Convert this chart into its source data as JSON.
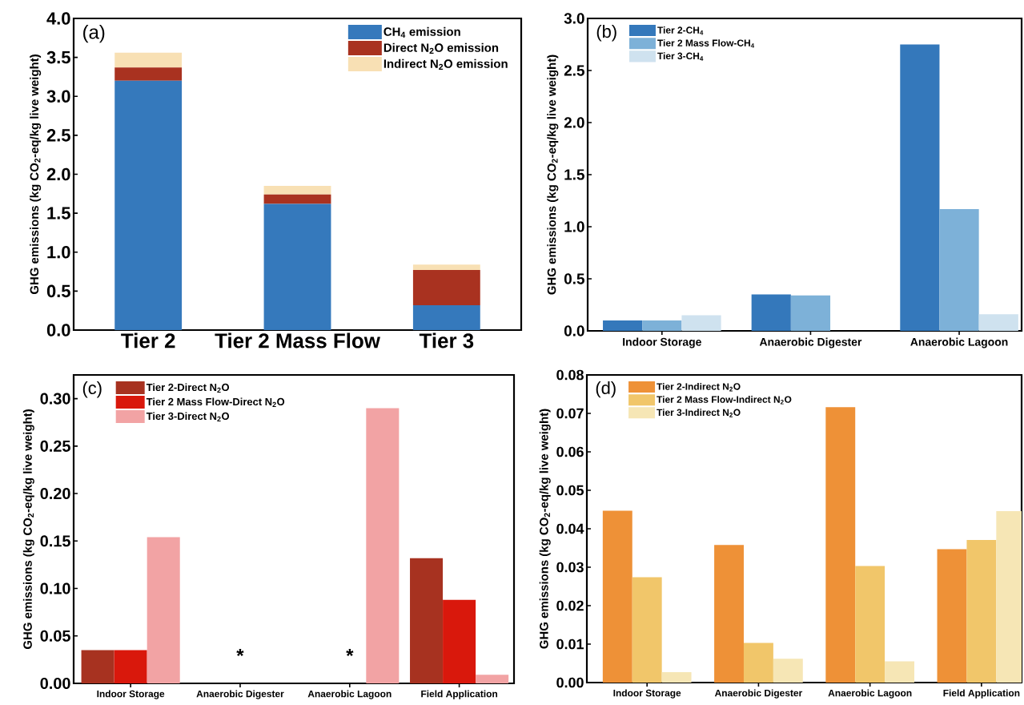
{
  "chart_data": [
    {
      "type": "bar",
      "stacked": true,
      "categories": [
        "Tier 2",
        "Tier 2 Mass Flow",
        "Tier 3"
      ],
      "ylabel": "GHG emissions (kg CO$_{2}$-eq/kg live weight)",
      "ylim": [
        0,
        4
      ],
      "yticks": [
        {
          "value": 0,
          "label": "0.0"
        },
        {
          "value": 0.5,
          "label": "0.5"
        },
        {
          "value": 1,
          "label": "1.0"
        },
        {
          "value": 1.5,
          "label": "1.5"
        },
        {
          "value": 2,
          "label": "2.0"
        },
        {
          "value": 2.5,
          "label": "2.5"
        },
        {
          "value": 3,
          "label": "3.0"
        },
        {
          "value": 3.5,
          "label": "3.5"
        },
        {
          "value": 4,
          "label": "4.0"
        }
      ],
      "legend": "top right",
      "annotations": [
        "(a)"
      ],
      "series": [
        {
          "name": "CH$_{4}$ emission",
          "color": "#3579bc",
          "values": [
            3.2,
            1.62,
            0.32
          ]
        },
        {
          "name": "Direct N$_{2}$O emission",
          "color": "#a93220",
          "values": [
            0.17,
            0.12,
            0.45
          ]
        },
        {
          "name": "Indirect N$_{2}$O emission",
          "color": "#f8e0b4",
          "values": [
            0.19,
            0.11,
            0.07
          ]
        }
      ]
    },
    {
      "type": "bar",
      "categories": [
        "Indoor Storage",
        "Anaerobic Digester",
        "Anaerobic Lagoon"
      ],
      "ylabel": "GHG emissions (kg CO$_{2}$-eq/kg live weight)",
      "ylim": [
        0,
        3
      ],
      "yticks": [
        {
          "value": 0,
          "label": "0.0"
        },
        {
          "value": 0.5,
          "label": "0.5"
        },
        {
          "value": 1,
          "label": "1.0"
        },
        {
          "value": 1.5,
          "label": "1.5"
        },
        {
          "value": 2,
          "label": "2.0"
        },
        {
          "value": 2.5,
          "label": "2.5"
        },
        {
          "value": 3,
          "label": "3.0"
        }
      ],
      "legend": "top left",
      "annotations": [
        "(b)"
      ],
      "series": [
        {
          "name": "Tier 2-CH$_{4}$",
          "color": "#3478bb",
          "values": [
            0.1,
            0.35,
            2.75
          ]
        },
        {
          "name": "Tier 2 Mass Flow-CH$_{4}$",
          "color": "#7db1d8",
          "values": [
            0.1,
            0.34,
            1.17
          ]
        },
        {
          "name": "Tier 3-CH$_{4}$",
          "color": "#cfe2ef",
          "values": [
            0.15,
            null,
            0.16
          ]
        }
      ]
    },
    {
      "type": "bar",
      "categories": [
        "Indoor Storage",
        "Anaerobic Digester",
        "Anaerobic Lagoon",
        "Field Application"
      ],
      "ylabel": "GHG emissions (kg CO$_{2}$-eq/kg live weight)",
      "ylim": [
        0,
        0.325
      ],
      "yticks": [
        {
          "value": 0,
          "label": "0.00"
        },
        {
          "value": 0.05,
          "label": "0.05"
        },
        {
          "value": 0.1,
          "label": "0.10"
        },
        {
          "value": 0.15,
          "label": "0.15"
        },
        {
          "value": 0.2,
          "label": "0.20"
        },
        {
          "value": 0.25,
          "label": "0.25"
        },
        {
          "value": 0.3,
          "label": "0.30"
        }
      ],
      "legend": "top left",
      "annotations": [
        "(c)",
        "*",
        "*"
      ],
      "series": [
        {
          "name": "Tier 2-Direct N$_{2}$O",
          "color": "#a73220",
          "values": [
            0.035,
            null,
            null,
            0.132
          ]
        },
        {
          "name": "Tier 2 Mass Flow-Direct N$_{2}$O",
          "color": "#d9180c",
          "values": [
            0.035,
            null,
            null,
            0.088
          ]
        },
        {
          "name": "Tier 3-Direct N$_{2}$O",
          "color": "#f2a3a4",
          "values": [
            0.154,
            null,
            0.29,
            0.009
          ]
        }
      ]
    },
    {
      "type": "bar",
      "categories": [
        "Indoor Storage",
        "Anaerobic Digester",
        "Anaerobic Lagoon",
        "Field Application"
      ],
      "ylabel": "GHG emissions (kg CO$_{2}$-eq/kg live weight)",
      "ylim": [
        0,
        0.08
      ],
      "yticks": [
        {
          "value": 0,
          "label": "0.00"
        },
        {
          "value": 0.01,
          "label": "0.01"
        },
        {
          "value": 0.02,
          "label": "0.02"
        },
        {
          "value": 0.03,
          "label": "0.03"
        },
        {
          "value": 0.04,
          "label": "0.04"
        },
        {
          "value": 0.05,
          "label": "0.05"
        },
        {
          "value": 0.06,
          "label": "0.06"
        },
        {
          "value": 0.07,
          "label": "0.07"
        },
        {
          "value": 0.08,
          "label": "0.08"
        }
      ],
      "legend": "top left",
      "annotations": [
        "(d)"
      ],
      "series": [
        {
          "name": "Tier 2-Indirect N$_{2}$O",
          "color": "#ee9137",
          "values": [
            0.0447,
            0.0358,
            0.0716,
            0.0347
          ]
        },
        {
          "name": "Tier 2 Mass Flow-Indirect N$_{2}$O",
          "color": "#f1c66a",
          "values": [
            0.0274,
            0.0103,
            0.0303,
            0.0371
          ]
        },
        {
          "name": "Tier 3-Indirect N$_{2}$O",
          "color": "#f6e6b5",
          "values": [
            0.0027,
            0.0062,
            0.0055,
            0.0446
          ]
        }
      ]
    }
  ]
}
